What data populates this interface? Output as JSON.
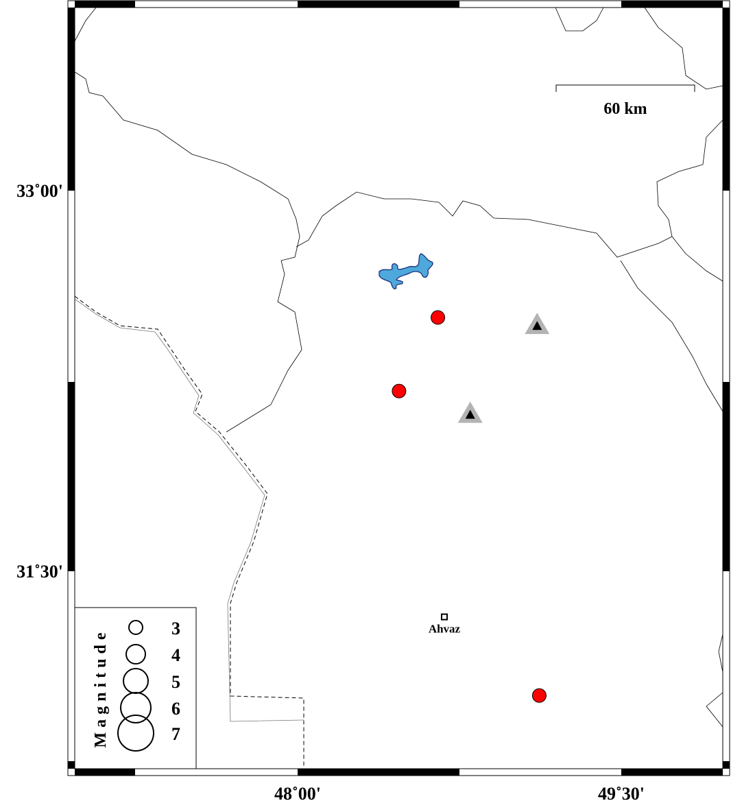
{
  "map": {
    "x_ticks": [
      {
        "lon": 48.0,
        "label": "48˚00'"
      },
      {
        "lon": 49.5,
        "label": "49˚30'"
      }
    ],
    "y_ticks": [
      {
        "lat": 33.0,
        "label": "33˚00'"
      },
      {
        "lat": 31.5,
        "label": "31˚30'"
      }
    ],
    "scale_bar": {
      "label": "60 km"
    },
    "colors": {
      "event": "#ff0000",
      "station_outer": "#b3b3b3",
      "station_inner": "#000000",
      "lake": "#4fa8dc",
      "lake_edge": "#1a2f7a"
    },
    "events": [
      {
        "lon": 48.65,
        "lat": 32.5
      },
      {
        "lon": 48.47,
        "lat": 32.21
      },
      {
        "lon": 49.12,
        "lat": 31.01
      }
    ],
    "stations": [
      {
        "lon": 49.11,
        "lat": 32.47
      },
      {
        "lon": 48.8,
        "lat": 32.12
      }
    ],
    "city": {
      "name": "Ahvaz",
      "lon": 48.68,
      "lat": 31.32
    }
  },
  "legend": {
    "title": "Magnitude",
    "magnitudes": [
      "3",
      "4",
      "5",
      "6",
      "7"
    ]
  }
}
